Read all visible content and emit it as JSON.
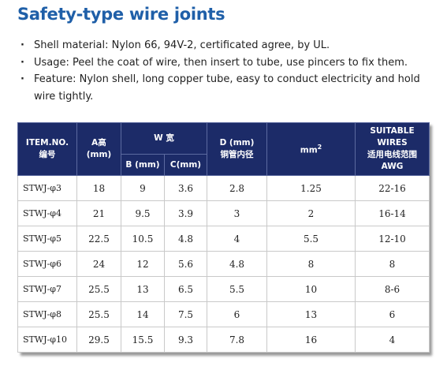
{
  "title": "Safety-type wire joints",
  "bullets": [
    "Shell material: Nylon 66, 94V-2, certificated agree, by UL.",
    "Usage: Peel the coat of wire, then insert to tube, use pincers to fix them.",
    "Feature: Nylon shell, long copper tube, easy to conduct electricity and hold wire tightly."
  ],
  "table": {
    "header": {
      "item": [
        "ITEM.NO.",
        "编号"
      ],
      "a": [
        "A高",
        "(mm)"
      ],
      "w": "W 宽",
      "b": "B (mm)",
      "c": "C(mm)",
      "d": [
        "D (mm)",
        "铜管内径"
      ],
      "area": [
        "mm",
        "2"
      ],
      "wires": [
        "SUITABLE WIRES",
        "适用电线范围",
        "AWG"
      ]
    },
    "rows": [
      [
        "STWJ-φ3",
        "18",
        "9",
        "3.6",
        "2.8",
        "1.25",
        "22-16"
      ],
      [
        "STWJ-φ4",
        "21",
        "9.5",
        "3.9",
        "3",
        "2",
        "16-14"
      ],
      [
        "STWJ-φ5",
        "22.5",
        "10.5",
        "4.8",
        "4",
        "5.5",
        "12-10"
      ],
      [
        "STWJ-φ6",
        "24",
        "12",
        "5.6",
        "4.8",
        "8",
        "8"
      ],
      [
        "STWJ-φ7",
        "25.5",
        "13",
        "6.5",
        "5.5",
        "10",
        "8-6"
      ],
      [
        "STWJ-φ8",
        "25.5",
        "14",
        "7.5",
        "6",
        "13",
        "6"
      ],
      [
        "STWJ-φ10",
        "29.5",
        "15.5",
        "9.3",
        "7.8",
        "16",
        "4"
      ]
    ]
  }
}
